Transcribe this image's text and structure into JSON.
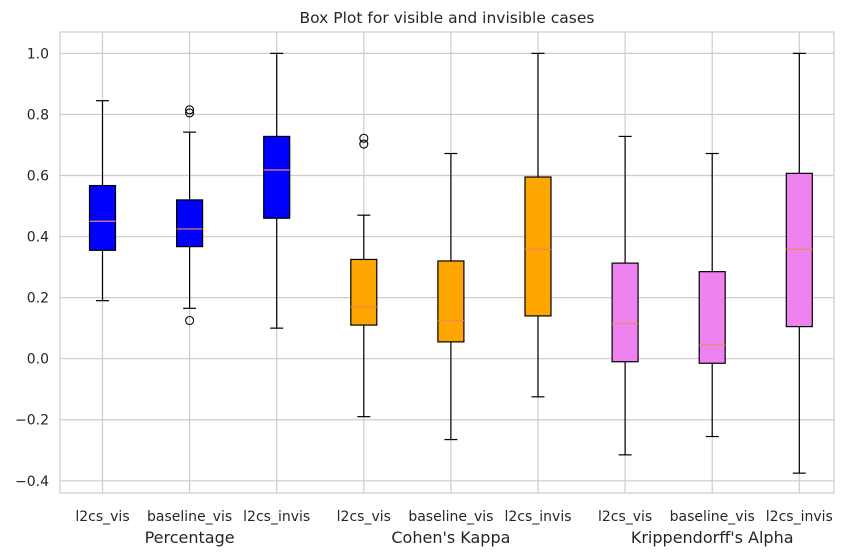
{
  "chart_data": {
    "type": "box",
    "title": "Box Plot for visible and invisible cases",
    "xlabel": "",
    "ylabel": "",
    "ylim": [
      -0.44,
      1.07
    ],
    "yticks": [
      -0.4,
      -0.2,
      0.0,
      0.2,
      0.4,
      0.6,
      0.8,
      1.0
    ],
    "ytick_labels": [
      "−0.4",
      "−0.2",
      "0.0",
      "0.2",
      "0.4",
      "0.6",
      "0.8",
      "1.0"
    ],
    "grid": true,
    "groups": [
      {
        "label": "Percentage",
        "color": "#0000ff"
      },
      {
        "label": "Cohen's Kappa",
        "color": "#ffa500"
      },
      {
        "label": "Krippendorff's Alpha",
        "color": "#ee82ee"
      }
    ],
    "median_color": "#f08a5d",
    "boxes": [
      {
        "label": "l2cs_vis",
        "group": 0,
        "whislo": 0.19,
        "q1": 0.355,
        "med": 0.45,
        "q3": 0.567,
        "whishi": 0.845,
        "fliers": []
      },
      {
        "label": "baseline_vis",
        "group": 0,
        "whislo": 0.165,
        "q1": 0.367,
        "med": 0.425,
        "q3": 0.52,
        "whishi": 0.742,
        "fliers": [
          0.125,
          0.805,
          0.815
        ]
      },
      {
        "label": "l2cs_invis",
        "group": 0,
        "whislo": 0.1,
        "q1": 0.46,
        "med": 0.618,
        "q3": 0.728,
        "whishi": 1.0,
        "fliers": []
      },
      {
        "label": "l2cs_vis",
        "group": 1,
        "whislo": -0.19,
        "q1": 0.11,
        "med": 0.17,
        "q3": 0.325,
        "whishi": 0.47,
        "fliers": [
          0.703,
          0.722
        ]
      },
      {
        "label": "baseline_vis",
        "group": 1,
        "whislo": -0.265,
        "q1": 0.055,
        "med": 0.125,
        "q3": 0.32,
        "whishi": 0.672,
        "fliers": []
      },
      {
        "label": "l2cs_invis",
        "group": 1,
        "whislo": -0.125,
        "q1": 0.14,
        "med": 0.358,
        "q3": 0.595,
        "whishi": 1.0,
        "fliers": []
      },
      {
        "label": "l2cs_vis",
        "group": 2,
        "whislo": -0.315,
        "q1": -0.01,
        "med": 0.115,
        "q3": 0.313,
        "whishi": 0.728,
        "fliers": []
      },
      {
        "label": "baseline_vis",
        "group": 2,
        "whislo": -0.255,
        "q1": -0.015,
        "med": 0.045,
        "q3": 0.285,
        "whishi": 0.672,
        "fliers": []
      },
      {
        "label": "l2cs_invis",
        "group": 2,
        "whislo": -0.375,
        "q1": 0.105,
        "med": 0.358,
        "q3": 0.607,
        "whishi": 1.0,
        "fliers": []
      }
    ]
  }
}
